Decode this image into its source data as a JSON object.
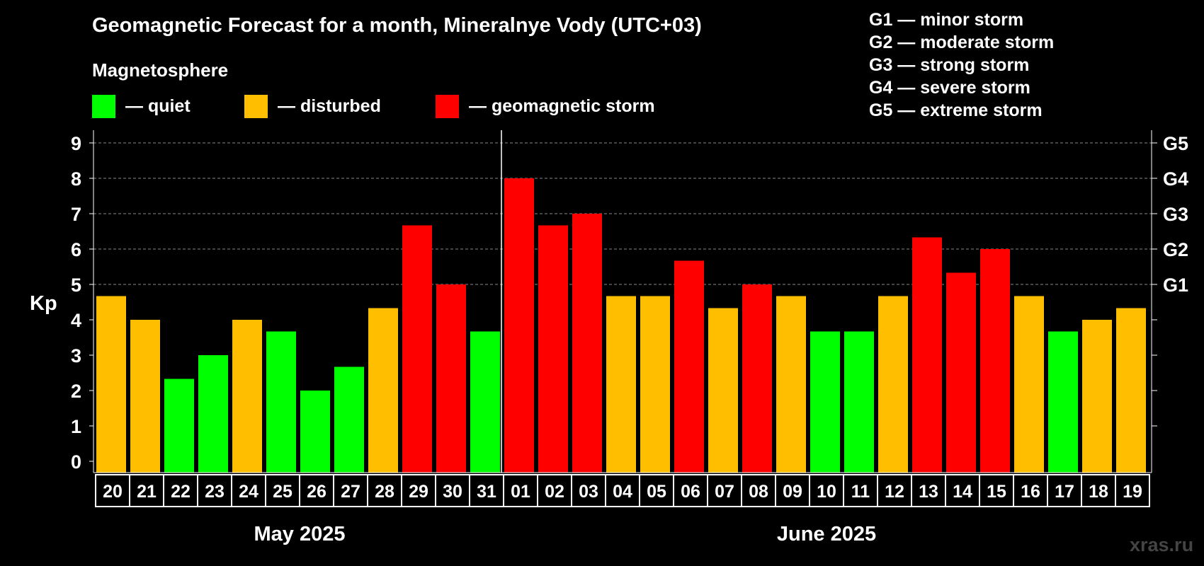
{
  "chart_data": {
    "type": "bar",
    "title": "Geomagnetic Forecast for a month, Mineralnye Vody (UTC+03)",
    "subtitle": "Magnetosphere",
    "ylabel": "Kp",
    "ylim": [
      0,
      9
    ],
    "yticks": [
      "0",
      "1",
      "2",
      "3",
      "4",
      "5",
      "6",
      "7",
      "8",
      "9"
    ],
    "right_ticks": [
      {
        "value": 5,
        "label": "G1"
      },
      {
        "value": 6,
        "label": "G2"
      },
      {
        "value": 7,
        "label": "G3"
      },
      {
        "value": 8,
        "label": "G4"
      },
      {
        "value": 9,
        "label": "G5"
      }
    ],
    "grid": true,
    "categories": [
      "20",
      "21",
      "22",
      "23",
      "24",
      "25",
      "26",
      "27",
      "28",
      "29",
      "30",
      "31",
      "01",
      "02",
      "03",
      "04",
      "05",
      "06",
      "07",
      "08",
      "09",
      "10",
      "11",
      "12",
      "13",
      "14",
      "15",
      "16",
      "17",
      "18",
      "19"
    ],
    "values": [
      4.67,
      4.0,
      2.33,
      3.0,
      4.0,
      3.67,
      2.0,
      2.67,
      4.33,
      6.67,
      5.0,
      3.67,
      8.0,
      6.67,
      7.0,
      4.67,
      4.67,
      5.67,
      4.33,
      5.0,
      4.67,
      3.67,
      3.67,
      4.67,
      6.33,
      5.33,
      6.0,
      4.67,
      3.67,
      4.0,
      4.33
    ],
    "levels": [
      "disturbed",
      "disturbed",
      "quiet",
      "quiet",
      "disturbed",
      "quiet",
      "quiet",
      "quiet",
      "disturbed",
      "storm",
      "storm",
      "quiet",
      "storm",
      "storm",
      "storm",
      "disturbed",
      "disturbed",
      "storm",
      "disturbed",
      "storm",
      "disturbed",
      "quiet",
      "quiet",
      "disturbed",
      "storm",
      "storm",
      "storm",
      "disturbed",
      "quiet",
      "disturbed",
      "disturbed"
    ],
    "months": [
      {
        "label": "May 2025",
        "start": 0,
        "count": 12
      },
      {
        "label": "June 2025",
        "start": 12,
        "count": 19
      }
    ],
    "legend": [
      {
        "key": "quiet",
        "label": "— quiet",
        "color": "#00ff00"
      },
      {
        "key": "disturbed",
        "label": "— disturbed",
        "color": "#ffbf00"
      },
      {
        "key": "storm",
        "label": "— geomagnetic storm",
        "color": "#ff0000"
      }
    ],
    "storm_scale": [
      "G1 — minor storm",
      "G2 — moderate storm",
      "G3 — strong storm",
      "G4 — severe storm",
      "G5 — extreme storm"
    ]
  },
  "watermark": "xras.ru"
}
